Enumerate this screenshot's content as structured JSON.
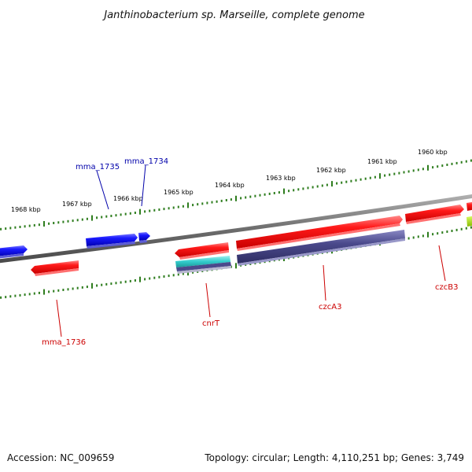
{
  "title": "Janthinobacterium sp. Marseille, complete genome",
  "footer": {
    "accession": "Accession: NC_009659",
    "topology": "Topology: circular; Length: 4,110,251 bp; Genes: 3,749"
  },
  "colors": {
    "backbone": "#7a7a7a",
    "tick_marks": "#2e7d1e",
    "forward_gene": "#ff0000",
    "reverse_gene": "#0000ff",
    "label_forward": "#cc0000",
    "label_reverse": "#0000aa",
    "feature_purple": "#4b4a8c",
    "feature_cyan": "#33cccc",
    "feature_lime": "#99cc00"
  },
  "axis": {
    "units": "kbp",
    "ticks": [
      "1968 kbp",
      "1967 kbp",
      "1966 kbp",
      "1965 kbp",
      "1964 kbp",
      "1963 kbp",
      "1962 kbp",
      "1961 kbp",
      "1960 kbp"
    ]
  },
  "genes_labels": {
    "mma_1735": "mma_1735",
    "mma_1734": "mma_1734",
    "mma_1736": "mma_1736",
    "cnrT": "cnrT",
    "czcA3": "czcA3",
    "czcB3": "czcB3"
  }
}
